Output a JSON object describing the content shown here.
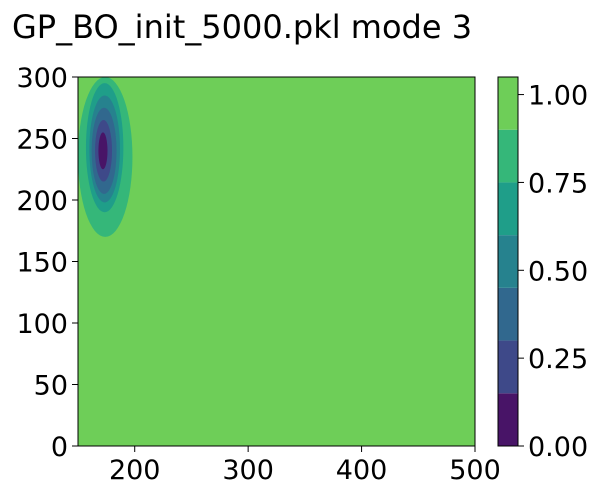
{
  "chart_data": {
    "type": "heatmap",
    "title": "GP_BO_init_5000.pkl mode 3",
    "xlabel": "",
    "ylabel": "",
    "xlim": [
      150,
      500
    ],
    "ylim": [
      0,
      300
    ],
    "x_ticks": [
      200,
      300,
      400,
      500
    ],
    "x_tick_labels": [
      "200",
      "300",
      "400",
      "500"
    ],
    "y_ticks": [
      0,
      50,
      100,
      150,
      200,
      250,
      300
    ],
    "y_tick_labels": [
      "0",
      "50",
      "100",
      "150",
      "200",
      "250",
      "300"
    ],
    "colorbar": {
      "range": [
        0.0,
        1.05
      ],
      "ticks": [
        0.0,
        0.25,
        0.5,
        0.75,
        1.0
      ],
      "tick_labels": [
        "0.00",
        "0.25",
        "0.50",
        "0.75",
        "1.00"
      ],
      "levels": [
        0.0,
        0.15,
        0.3,
        0.45,
        0.6,
        0.75,
        0.9,
        1.05
      ],
      "colors": [
        "#481467",
        "#3e4989",
        "#31688e",
        "#26828e",
        "#1f9e89",
        "#35b779",
        "#6ece58",
        "#cde11d"
      ]
    },
    "background_value": 1.0,
    "feature": {
      "description_center_x": 172,
      "center_y": 240,
      "min_value": 0.0,
      "bands": [
        {
          "level_max": 0.15,
          "x_range": [
            168,
            176
          ],
          "y_range": [
            225,
            255
          ]
        },
        {
          "level_max": 0.3,
          "x_range": [
            165,
            180
          ],
          "y_range": [
            215,
            265
          ]
        },
        {
          "level_max": 0.45,
          "x_range": [
            162,
            184
          ],
          "y_range": [
            205,
            275
          ]
        },
        {
          "level_max": 0.6,
          "x_range": [
            160,
            187
          ],
          "y_range": [
            198,
            285
          ]
        },
        {
          "level_max": 0.75,
          "x_range": [
            157,
            190
          ],
          "y_range": [
            190,
            295
          ]
        },
        {
          "level_max": 0.9,
          "x_range": [
            150,
            198
          ],
          "y_range": [
            170,
            300
          ]
        }
      ]
    },
    "grid": false
  }
}
